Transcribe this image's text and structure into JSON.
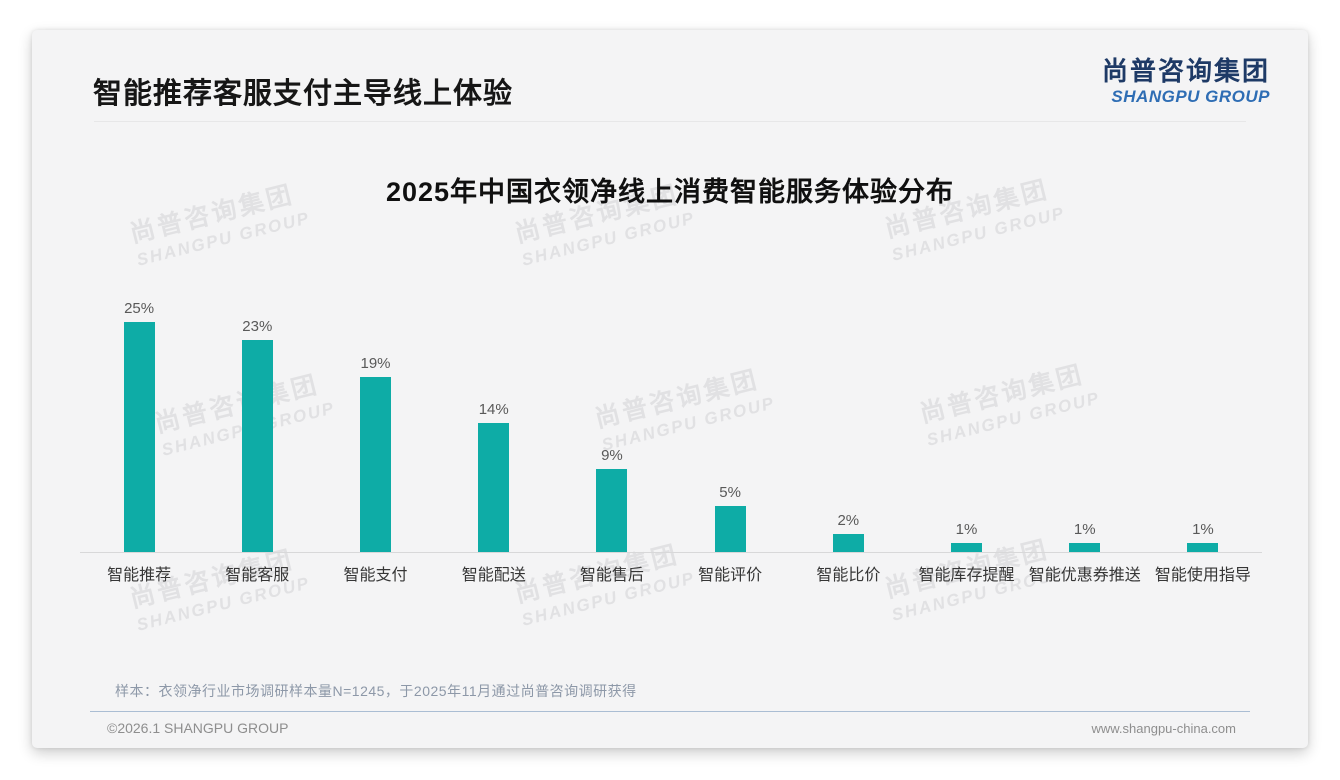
{
  "page": {
    "header": {
      "title": "智能推荐客服支付主导线上体验"
    },
    "logo": {
      "cn": "尚普咨询集团",
      "en": "SHANGPU GROUP"
    },
    "watermark": {
      "cn": "尚普咨询集团",
      "en": "SHANGPU GROUP"
    },
    "footer": {
      "note": "样本：衣领净行业市场调研样本量N=1245，于2025年11月通过尚普咨询调研获得",
      "copyright": "©2026.1 SHANGPU GROUP",
      "website": "www.shangpu-china.com"
    }
  },
  "colors": {
    "bar": "#0eaca6",
    "logo_cn": "#1e3a66",
    "logo_en": "#2e6db4",
    "card_background": "#f4f4f5",
    "watermark": "#e1e1e3"
  },
  "chart_data": {
    "type": "bar",
    "title": "2025年中国衣领净线上消费智能服务体验分布",
    "categories": [
      "智能推荐",
      "智能客服",
      "智能支付",
      "智能配送",
      "智能售后",
      "智能评价",
      "智能比价",
      "智能库存提醒",
      "智能优惠券推送",
      "智能使用指导"
    ],
    "values": [
      25,
      23,
      19,
      14,
      9,
      5,
      2,
      1,
      1,
      1
    ],
    "value_suffix": "%",
    "xlabel": "",
    "ylabel": "",
    "ylim": [
      0,
      27
    ],
    "grid": false,
    "legend": "none",
    "bar_color": "#0eaca6"
  }
}
